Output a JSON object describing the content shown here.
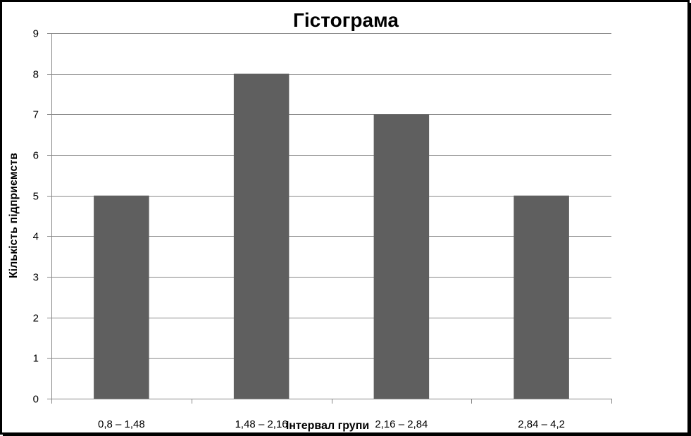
{
  "chart_data": {
    "type": "bar",
    "title": "Гістограма",
    "xlabel": "Інтервал групи",
    "ylabel": "Кількість підприємств",
    "categories": [
      "0,8 – 1,48",
      "1,48 – 2,16",
      "2,16 – 2,84",
      "2,84 – 4,2"
    ],
    "series": [
      {
        "values": [
          5,
          8,
          7,
          5
        ]
      }
    ],
    "ylim": [
      0,
      9
    ],
    "yticks": [
      "0",
      "1",
      "2",
      "3",
      "4",
      "5",
      "6",
      "7",
      "8",
      "9"
    ],
    "grid": true,
    "legend": "none",
    "colors": {
      "bar": "#5f5f5f",
      "grid": "#888888",
      "axis": "#888888",
      "frame": "#000000"
    }
  }
}
